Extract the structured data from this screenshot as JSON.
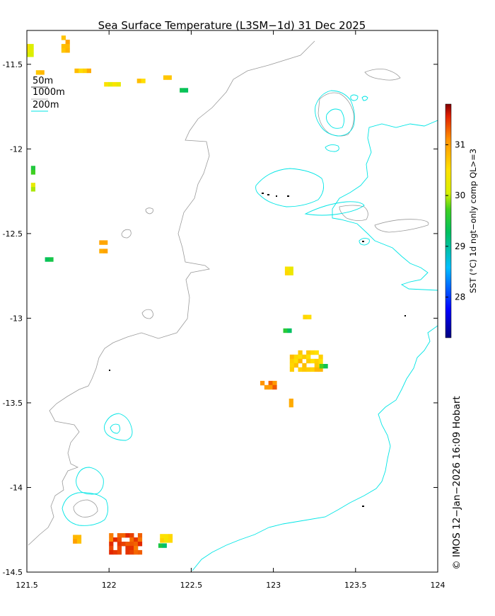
{
  "title": "Sea Surface Temperature (L3SM−1d) 31 Dec 2025",
  "credit": "© IMOS 12−Jan−2026 16:09 Hobart",
  "colorbar": {
    "label": "SST (°C) 1d ngt−only comp QL>=3",
    "ticks": [
      "28",
      "29",
      "30",
      "31"
    ],
    "range": [
      27.2,
      31.8
    ]
  },
  "depth_legend": [
    "50m",
    "1000m",
    "200m"
  ],
  "axes": {
    "x_ticks": [
      "121.5",
      "122",
      "122.5",
      "123",
      "123.5",
      "124"
    ],
    "y_ticks": [
      "-11.5",
      "-12",
      "-12.5",
      "-13",
      "-13.5",
      "-14",
      "-14.5"
    ],
    "xlim": [
      121.5,
      124.0
    ],
    "ylim": [
      -14.5,
      -11.3
    ]
  },
  "colors": {
    "contour_200m": "#00e5e5",
    "contour_1000m": "#9a9a9a",
    "land": "#000000"
  },
  "sst_patches": [
    {
      "lon": 121.52,
      "lat": -11.42,
      "w": 0.06,
      "h": 0.08,
      "sst": 30.2
    },
    {
      "lon": 121.74,
      "lat": -11.38,
      "w": 0.06,
      "h": 0.1,
      "sst": 30.8
    },
    {
      "lon": 121.84,
      "lat": -11.54,
      "w": 0.1,
      "h": 0.03,
      "sst": 30.7
    },
    {
      "lon": 121.58,
      "lat": -11.55,
      "w": 0.05,
      "h": 0.03,
      "sst": 30.6
    },
    {
      "lon": 122.02,
      "lat": -11.62,
      "w": 0.1,
      "h": 0.03,
      "sst": 30.3
    },
    {
      "lon": 122.2,
      "lat": -11.6,
      "w": 0.06,
      "h": 0.03,
      "sst": 30.7
    },
    {
      "lon": 122.36,
      "lat": -11.58,
      "w": 0.06,
      "h": 0.03,
      "sst": 30.8
    },
    {
      "lon": 122.45,
      "lat": -11.65,
      "w": 0.04,
      "h": 0.02,
      "sst": 29.5
    },
    {
      "lon": 121.54,
      "lat": -12.12,
      "w": 0.03,
      "h": 0.04,
      "sst": 29.6
    },
    {
      "lon": 121.54,
      "lat": -12.22,
      "w": 0.03,
      "h": 0.04,
      "sst": 30.1
    },
    {
      "lon": 121.97,
      "lat": -12.55,
      "w": 0.06,
      "h": 0.02,
      "sst": 30.9
    },
    {
      "lon": 121.97,
      "lat": -12.6,
      "w": 0.06,
      "h": 0.02,
      "sst": 30.9
    },
    {
      "lon": 121.63,
      "lat": -12.65,
      "w": 0.04,
      "h": 0.02,
      "sst": 29.5
    },
    {
      "lon": 123.09,
      "lat": -12.72,
      "w": 0.04,
      "h": 0.05,
      "sst": 30.4
    },
    {
      "lon": 123.2,
      "lat": -13.25,
      "w": 0.2,
      "h": 0.12,
      "sst": 30.6
    },
    {
      "lon": 122.97,
      "lat": -13.4,
      "w": 0.1,
      "h": 0.06,
      "sst": 31.1
    },
    {
      "lon": 123.11,
      "lat": -13.5,
      "w": 0.03,
      "h": 0.05,
      "sst": 30.7
    },
    {
      "lon": 123.08,
      "lat": -13.07,
      "w": 0.04,
      "h": 0.02,
      "sst": 29.5
    },
    {
      "lon": 123.2,
      "lat": -12.99,
      "w": 0.04,
      "h": 0.02,
      "sst": 30.7
    },
    {
      "lon": 121.82,
      "lat": -14.3,
      "w": 0.08,
      "h": 0.04,
      "sst": 30.9
    },
    {
      "lon": 122.1,
      "lat": -14.33,
      "w": 0.2,
      "h": 0.12,
      "sst": 31.3
    },
    {
      "lon": 122.36,
      "lat": -14.3,
      "w": 0.1,
      "h": 0.05,
      "sst": 30.5
    },
    {
      "lon": 122.32,
      "lat": -14.34,
      "w": 0.04,
      "h": 0.02,
      "sst": 29.4
    },
    {
      "lon": 123.3,
      "lat": -13.28,
      "w": 0.04,
      "h": 0.02,
      "sst": 29.6
    }
  ]
}
